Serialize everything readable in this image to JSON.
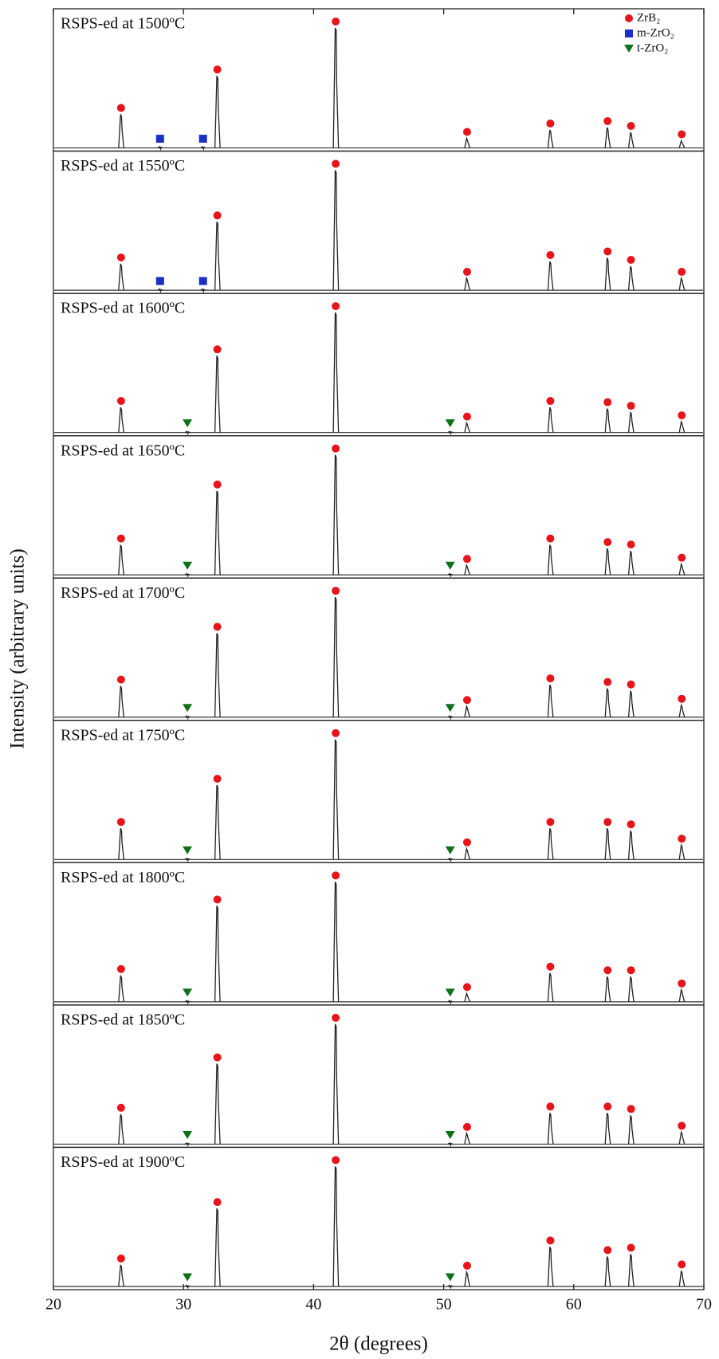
{
  "chart_data": {
    "type": "xrd",
    "xlabel": "2θ (degrees)",
    "ylabel": "Intensity (arbitrary units)",
    "xlim": [
      20,
      70
    ],
    "xticks": [
      20,
      30,
      40,
      50,
      60,
      70
    ],
    "ylim": [
      0,
      100
    ],
    "legend_position": "upper right",
    "phases": [
      {
        "name": "ZrB₂",
        "color": "#e8141b",
        "marker": "circle"
      },
      {
        "name": "m-ZrO₂",
        "color": "#1a2fc4",
        "marker": "square"
      },
      {
        "name": "t-ZrO₂",
        "color": "#11701a",
        "marker": "triangle"
      }
    ],
    "panels": [
      {
        "label": "RSPS-ed at 1500ºC",
        "series": [
          {
            "phase": 0,
            "x": [
              25.2,
              32.6,
              41.7,
              51.8,
              58.2,
              62.6,
              64.4,
              68.3
            ],
            "values": [
              28,
              60,
              100,
              8,
              15,
              17,
              13,
              6
            ]
          },
          {
            "phase": 1,
            "x": [
              28.2,
              31.5
            ],
            "values": [
              1,
              1
            ]
          }
        ]
      },
      {
        "label": "RSPS-ed at 1550ºC",
        "series": [
          {
            "phase": 0,
            "x": [
              25.2,
              32.6,
              41.7,
              51.8,
              58.2,
              62.6,
              64.4,
              68.3
            ],
            "values": [
              22,
              57,
              100,
              10,
              24,
              27,
              20,
              10
            ]
          },
          {
            "phase": 1,
            "x": [
              28.2,
              31.5
            ],
            "values": [
              1,
              1
            ]
          }
        ]
      },
      {
        "label": "RSPS-ed at 1600ºC",
        "series": [
          {
            "phase": 0,
            "x": [
              25.2,
              32.6,
              41.7,
              51.8,
              58.2,
              62.6,
              64.4,
              68.3
            ],
            "values": [
              21,
              64,
              100,
              8,
              21,
              20,
              17,
              9
            ]
          },
          {
            "phase": 2,
            "x": [
              30.3,
              50.5
            ],
            "values": [
              1,
              1
            ]
          }
        ]
      },
      {
        "label": "RSPS-ed at 1650ºC",
        "series": [
          {
            "phase": 0,
            "x": [
              25.2,
              32.6,
              41.7,
              51.8,
              58.2,
              62.6,
              64.4,
              68.3
            ],
            "values": [
              25,
              70,
              100,
              8,
              25,
              22,
              20,
              9
            ]
          },
          {
            "phase": 2,
            "x": [
              30.3,
              50.5
            ],
            "values": [
              1,
              1
            ]
          }
        ]
      },
      {
        "label": "RSPS-ed at 1700ºC",
        "series": [
          {
            "phase": 0,
            "x": [
              25.2,
              32.6,
              41.7,
              51.8,
              58.2,
              62.6,
              64.4,
              68.3
            ],
            "values": [
              26,
              70,
              100,
              9,
              27,
              24,
              22,
              10
            ]
          },
          {
            "phase": 2,
            "x": [
              30.3,
              50.5
            ],
            "values": [
              1,
              1
            ]
          }
        ]
      },
      {
        "label": "RSPS-ed at 1750ºC",
        "series": [
          {
            "phase": 0,
            "x": [
              25.2,
              32.6,
              41.7,
              51.8,
              58.2,
              62.6,
              64.4,
              68.3
            ],
            "values": [
              26,
              62,
              100,
              9,
              26,
              26,
              24,
              12
            ]
          },
          {
            "phase": 2,
            "x": [
              30.3,
              50.5
            ],
            "values": [
              1,
              1
            ]
          }
        ]
      },
      {
        "label": "RSPS-ed at 1800ºC",
        "series": [
          {
            "phase": 0,
            "x": [
              25.2,
              32.6,
              41.7,
              51.8,
              58.2,
              62.6,
              64.4,
              68.3
            ],
            "values": [
              22,
              80,
              100,
              7,
              24,
              21,
              21,
              10
            ]
          },
          {
            "phase": 2,
            "x": [
              30.3,
              50.5
            ],
            "values": [
              1,
              1
            ]
          }
        ]
      },
      {
        "label": "RSPS-ed at 1850ºC",
        "series": [
          {
            "phase": 0,
            "x": [
              25.2,
              32.6,
              41.7,
              51.8,
              58.2,
              62.6,
              64.4,
              68.3
            ],
            "values": [
              25,
              67,
              100,
              9,
              26,
              26,
              24,
              10
            ]
          },
          {
            "phase": 2,
            "x": [
              30.3,
              50.5
            ],
            "values": [
              1,
              1
            ]
          }
        ]
      },
      {
        "label": "RSPS-ed at 1900ºC",
        "series": [
          {
            "phase": 0,
            "x": [
              25.2,
              32.6,
              41.7,
              51.8,
              58.2,
              62.6,
              64.4,
              68.3
            ],
            "values": [
              18,
              65,
              100,
              12,
              33,
              25,
              27,
              13
            ]
          },
          {
            "phase": 2,
            "x": [
              30.3,
              50.5
            ],
            "values": [
              1,
              1
            ]
          }
        ]
      }
    ]
  }
}
